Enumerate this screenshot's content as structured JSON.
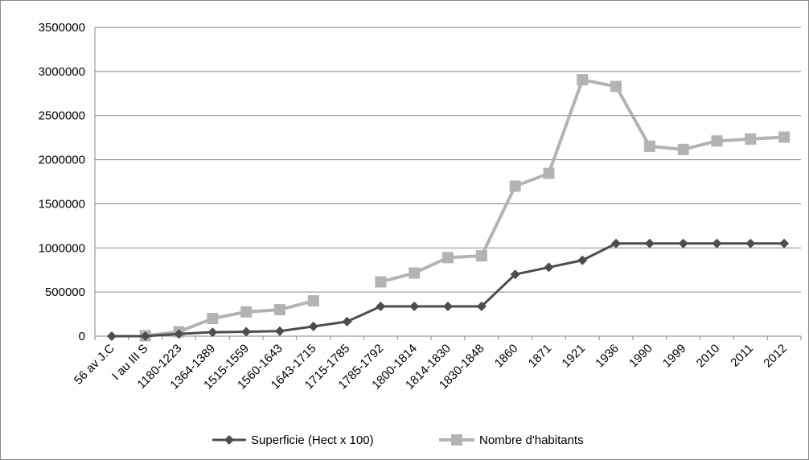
{
  "chart_data": {
    "type": "line",
    "categories": [
      "56 av J.C",
      "I au III S",
      "1180-1223",
      "1364-1389",
      "1515-1559",
      "1560-1643",
      "1643-1715",
      "1715-1785",
      "1785-1792",
      "1800-1814",
      "1814-1830",
      "1830-1848",
      "1860",
      "1871",
      "1921",
      "1936",
      "1990",
      "1999",
      "2010",
      "2011",
      "2012"
    ],
    "series": [
      {
        "name": "Superficie (Hect x 100)",
        "color": "#4d4d4d",
        "marker": "diamond",
        "values": [
          0,
          0,
          25000,
          45000,
          50000,
          57000,
          110000,
          165000,
          337000,
          337000,
          337000,
          337000,
          700000,
          780000,
          860000,
          1050000,
          1050000,
          1050000,
          1050000,
          1050000,
          1050000
        ]
      },
      {
        "name": "Nombre d'habitants",
        "color": "#b3b3b3",
        "marker": "square",
        "values": [
          null,
          5000,
          50000,
          200000,
          275000,
          300000,
          400000,
          null,
          615000,
          715000,
          890000,
          910000,
          1700000,
          1845000,
          2906000,
          2830000,
          2152000,
          2116000,
          2212000,
          2234000,
          2256000
        ]
      }
    ],
    "y_ticks": [
      "0",
      "500000",
      "1000000",
      "1500000",
      "2000000",
      "2500000",
      "3000000",
      "3500000"
    ],
    "ylim": [
      0,
      3500000
    ],
    "grid": "horizontal",
    "legend_position": "bottom",
    "title": "",
    "xlabel": "",
    "ylabel": ""
  }
}
